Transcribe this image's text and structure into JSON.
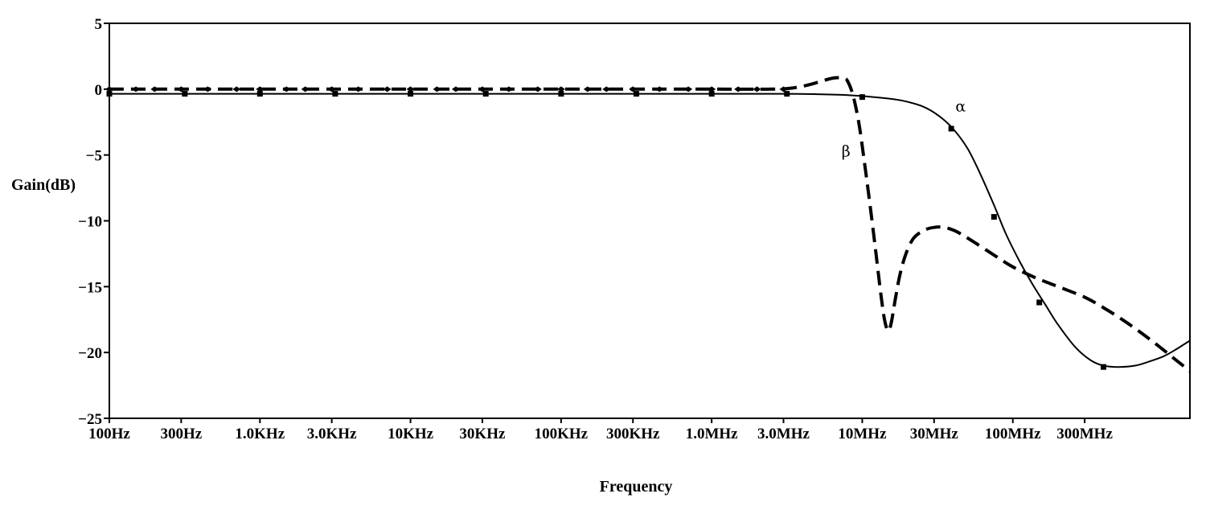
{
  "chart_data": {
    "type": "line",
    "title": "",
    "xlabel": "Frequency",
    "ylabel": "Gain(dB)",
    "x_scale": "log",
    "xlim": [
      100,
      1500000000
    ],
    "ylim": [
      -25,
      5
    ],
    "grid": false,
    "legend": "none",
    "yticks": [
      {
        "value": 5,
        "label": "5"
      },
      {
        "value": 0,
        "label": "0"
      },
      {
        "value": -5,
        "label": "−5"
      },
      {
        "value": -10,
        "label": "−10"
      },
      {
        "value": -15,
        "label": "−15"
      },
      {
        "value": -20,
        "label": "−20"
      },
      {
        "value": -25,
        "label": "−25"
      }
    ],
    "xticks": [
      {
        "value": 100,
        "label": "100Hz"
      },
      {
        "value": 300,
        "label": "300Hz"
      },
      {
        "value": 1000,
        "label": "1.0KHz"
      },
      {
        "value": 3000,
        "label": "3.0KHz"
      },
      {
        "value": 10000,
        "label": "10KHz"
      },
      {
        "value": 30000,
        "label": "30KHz"
      },
      {
        "value": 100000,
        "label": "100KHz"
      },
      {
        "value": 300000,
        "label": "300KHz"
      },
      {
        "value": 1000000,
        "label": "1.0MHz"
      },
      {
        "value": 3000000,
        "label": "3.0MHz"
      },
      {
        "value": 10000000,
        "label": "10MHz"
      },
      {
        "value": 30000000,
        "label": "30MHz"
      },
      {
        "value": 100000000,
        "label": "100MHz"
      },
      {
        "value": 300000000,
        "label": "300MHz"
      }
    ],
    "series": [
      {
        "name": "α",
        "style": "solid",
        "color": "#000000",
        "x": [
          100,
          1000,
          10000,
          100000,
          1000000,
          3000000,
          5000000,
          8000000,
          12000000,
          18000000,
          25000000,
          32000000,
          40000000,
          50000000,
          60000000,
          75000000,
          90000000,
          110000000,
          135000000,
          165000000,
          200000000,
          260000000,
          330000000,
          400000000,
          500000000,
          650000000,
          800000000,
          1000000000,
          1200000000,
          1500000000
        ],
        "y": [
          -0.35,
          -0.35,
          -0.35,
          -0.35,
          -0.35,
          -0.35,
          -0.38,
          -0.45,
          -0.6,
          -0.85,
          -1.3,
          -2.0,
          -3.0,
          -4.5,
          -6.3,
          -8.8,
          -11.0,
          -13.0,
          -14.8,
          -16.4,
          -17.9,
          -19.6,
          -20.6,
          -21.0,
          -21.1,
          -21.0,
          -20.7,
          -20.3,
          -19.8,
          -19.1
        ]
      },
      {
        "name": "β",
        "style": "dashed",
        "color": "#000000",
        "x": [
          100,
          1000,
          10000,
          100000,
          1000000,
          2500000,
          3500000,
          4500000,
          5500000,
          6500000,
          7500000,
          8000000,
          8700000,
          9500000,
          10300000,
          11200000,
          12200000,
          13200000,
          14000000,
          14700000,
          15200000,
          15800000,
          16600000,
          17800000,
          19500000,
          22000000,
          26000000,
          30000000,
          35000000,
          42000000,
          55000000,
          75000000,
          100000000,
          140000000,
          200000000,
          300000000,
          400000000,
          550000000,
          750000000,
          1000000000,
          1250000000,
          1500000000
        ],
        "y": [
          0,
          0,
          0,
          0,
          0,
          0,
          0.1,
          0.35,
          0.65,
          0.85,
          0.85,
          0.6,
          -0.5,
          -2.6,
          -5.4,
          -8.6,
          -12.0,
          -15.3,
          -17.4,
          -18.3,
          -18.2,
          -17.4,
          -15.9,
          -14.1,
          -12.5,
          -11.3,
          -10.7,
          -10.5,
          -10.5,
          -10.8,
          -11.6,
          -12.6,
          -13.5,
          -14.3,
          -15.0,
          -15.8,
          -16.6,
          -17.6,
          -18.7,
          -19.8,
          -20.7,
          -21.4
        ]
      }
    ],
    "markers": {
      "alpha": {
        "x": [
          100,
          317,
          1000,
          3160,
          10000,
          31600,
          100000,
          316000,
          1000000,
          3160000,
          10000000,
          39000000,
          75000000,
          150000000,
          400000000
        ],
        "y": [
          -0.35,
          -0.35,
          -0.35,
          -0.35,
          -0.35,
          -0.35,
          -0.35,
          -0.35,
          -0.35,
          -0.35,
          -0.6,
          -3.0,
          -9.7,
          -16.2,
          -21.1
        ]
      },
      "beta": {
        "x": [
          100,
          150,
          200,
          300,
          450,
          700,
          1000,
          1500,
          2000,
          3000,
          4500,
          7000,
          10000,
          15000,
          20000,
          30000,
          45000,
          70000,
          100000,
          150000,
          200000,
          300000,
          450000,
          700000,
          1000000,
          1500000,
          2000000,
          3000000
        ],
        "y": [
          0,
          0,
          0,
          0,
          0,
          0,
          0,
          0,
          0,
          0,
          0,
          0,
          0,
          0,
          0,
          0,
          0,
          0,
          0,
          0,
          0,
          0,
          0,
          0,
          0,
          0,
          0,
          0
        ]
      }
    },
    "annotations": [
      {
        "text": "α",
        "x": 45000000,
        "y": -1.7
      },
      {
        "text": "β",
        "x": 7800000,
        "y": -5.1
      }
    ]
  }
}
